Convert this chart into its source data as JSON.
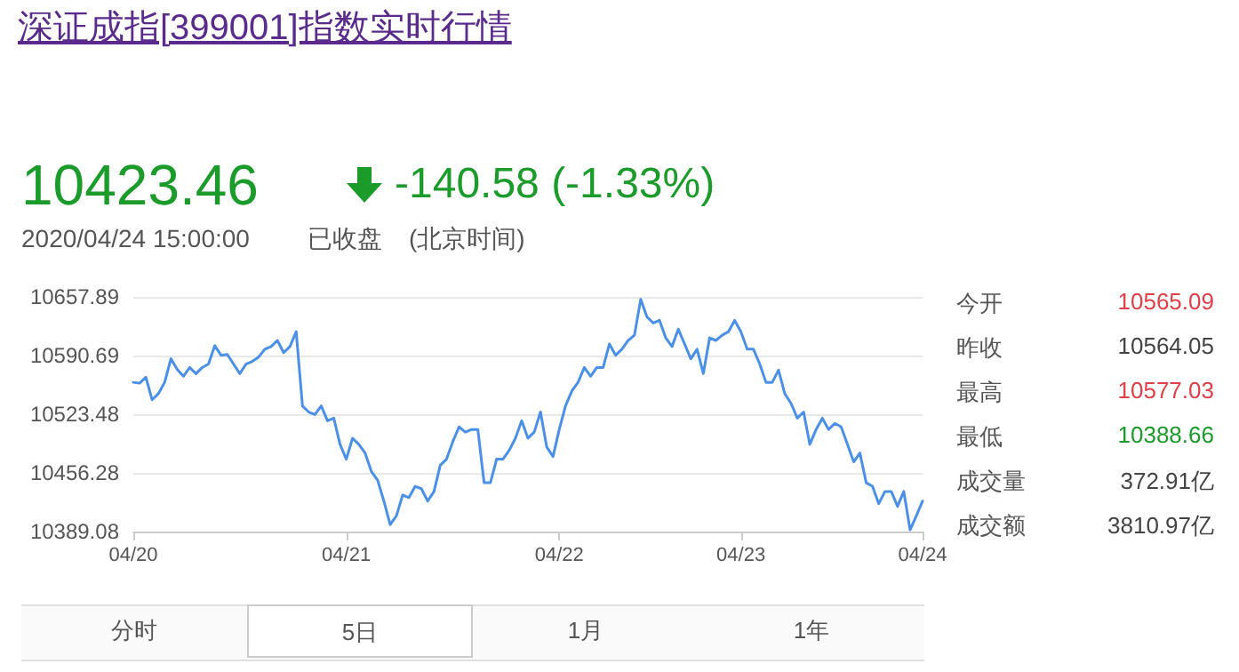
{
  "chart_data": {
    "type": "line",
    "title": "深证成指[399001]指数实时行情",
    "color": "#4a90e8",
    "marker": "none",
    "grid": "y",
    "categories": [
      "04/20",
      null,
      null,
      null,
      null,
      null,
      null,
      null,
      null,
      null,
      null,
      null,
      null,
      null,
      null,
      null,
      null,
      null,
      null,
      null,
      null,
      null,
      null,
      null,
      null,
      null,
      null,
      null,
      null,
      null,
      null,
      null,
      null,
      null,
      "04/21",
      null,
      null,
      null,
      null,
      null,
      null,
      null,
      null,
      null,
      null,
      null,
      null,
      null,
      null,
      null,
      null,
      null,
      null,
      null,
      null,
      null,
      null,
      null,
      null,
      null,
      null,
      null,
      null,
      null,
      null,
      null,
      null,
      null,
      "04/22",
      null,
      null,
      null,
      null,
      null,
      null,
      null,
      null,
      null,
      null,
      null,
      null,
      null,
      null,
      null,
      null,
      null,
      null,
      null,
      null,
      null,
      null,
      null,
      null,
      null,
      null,
      null,
      null,
      "04/23",
      null,
      null,
      null,
      null,
      null,
      null,
      null,
      null,
      null,
      null,
      null,
      null,
      null,
      null,
      null,
      null,
      null,
      null,
      null,
      null,
      null,
      null,
      null,
      null,
      null,
      null,
      null,
      null,
      "04/24"
    ],
    "ylim": [
      10389.08,
      10657.89
    ],
    "yticks": [
      10389.08,
      10456.28,
      10523.48,
      10590.69,
      10657.89
    ],
    "values": [
      10560,
      10559,
      10566,
      10540,
      10547,
      10560,
      10587,
      10575,
      10567,
      10577,
      10570,
      10577,
      10581,
      10602,
      10591,
      10592,
      10581,
      10570,
      10581,
      10584,
      10589,
      10598,
      10601,
      10608,
      10594,
      10601,
      10618,
      10533,
      10526,
      10523,
      10533,
      10516,
      10519,
      10489,
      10472,
      10496,
      10489,
      10479,
      10458,
      10448,
      10424,
      10397,
      10407,
      10431,
      10428,
      10441,
      10438,
      10424,
      10435,
      10465,
      10472,
      10492,
      10509,
      10503,
      10506,
      10506,
      10445,
      10445,
      10472,
      10472,
      10482,
      10496,
      10516,
      10496,
      10503,
      10526,
      10486,
      10475,
      10506,
      10533,
      10550,
      10560,
      10577,
      10567,
      10577,
      10577,
      10604,
      10591,
      10598,
      10608,
      10614,
      10655,
      10635,
      10628,
      10631,
      10611,
      10601,
      10621,
      10604,
      10587,
      10598,
      10570,
      10611,
      10608,
      10614,
      10618,
      10631,
      10618,
      10598,
      10598,
      10581,
      10560,
      10560,
      10574,
      10547,
      10536,
      10519,
      10526,
      10489,
      10506,
      10519,
      10506,
      10513,
      10509,
      10489,
      10469,
      10479,
      10445,
      10441,
      10421,
      10435,
      10435,
      10418,
      10435,
      10391,
      10407,
      10424
    ],
    "annotations": [
      "10423.46",
      "-140.58 (-1.33%)",
      "2020/04/24 15:00:00",
      "已收盘",
      "(北京时间)",
      "今开",
      "10565.09",
      "昨收",
      "10564.05",
      "最高",
      "10577.03",
      "最低",
      "10388.66",
      "成交量",
      "372.91亿",
      "成交额",
      "3810.97亿",
      "分时",
      "5日",
      "1月",
      "1年"
    ]
  }
}
